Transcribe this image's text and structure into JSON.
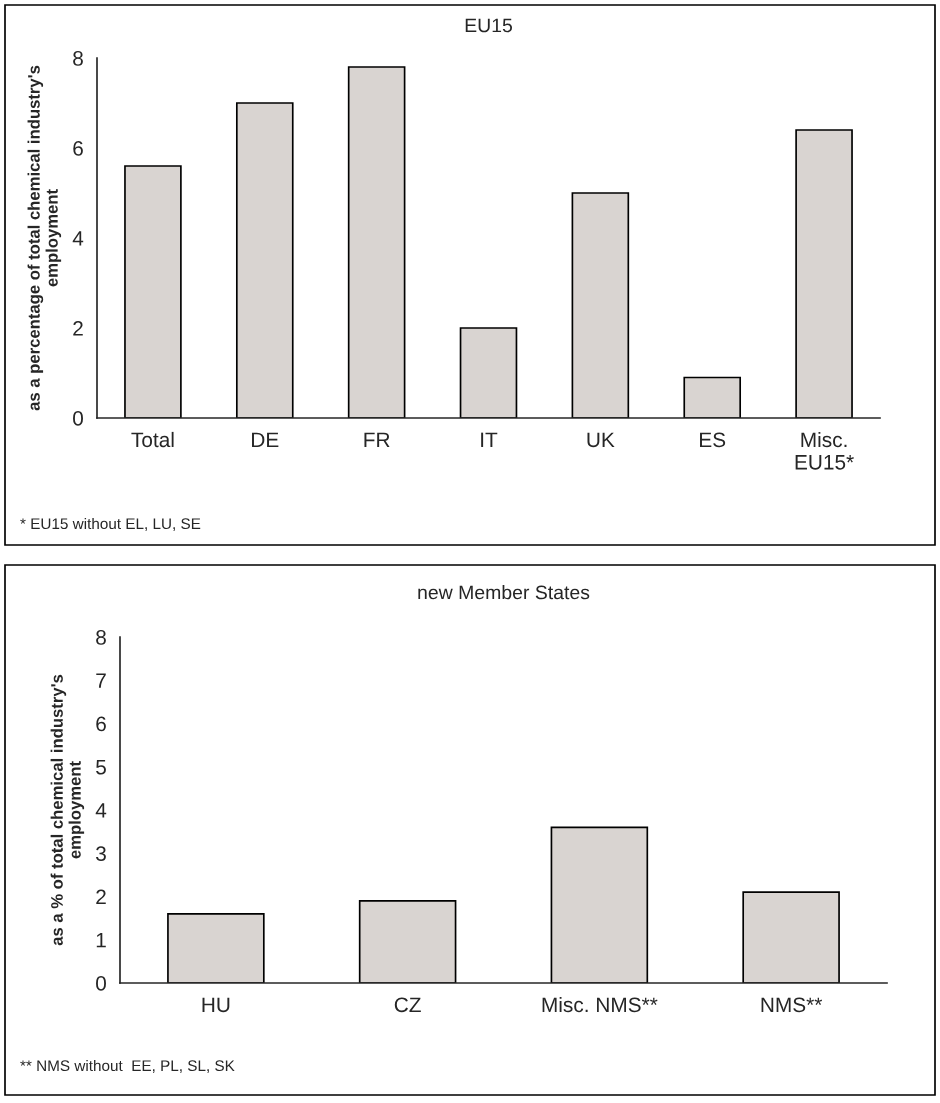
{
  "chart_data": [
    {
      "type": "bar",
      "title": "EU15",
      "ylabel": "as a percentage of total chemical industry's\nemployment",
      "categories": [
        "Total",
        "DE",
        "FR",
        "IT",
        "UK",
        "ES",
        "Misc.\nEU15*"
      ],
      "values": [
        5.6,
        7.0,
        7.8,
        2.0,
        5.0,
        0.9,
        6.4
      ],
      "color": "#d9d4d1",
      "ylim": [
        0,
        8
      ],
      "yticks": [
        0,
        2,
        4,
        6,
        8
      ],
      "grid": false,
      "annotations": [
        "* EU15 without EL, LU, SE"
      ]
    },
    {
      "type": "bar",
      "title": "new Member States",
      "ylabel": "as a % of total chemical industry's\nemployment",
      "categories": [
        "HU",
        "CZ",
        "Misc. NMS**",
        "NMS**"
      ],
      "values": [
        1.6,
        1.9,
        3.6,
        2.1
      ],
      "color": "#d9d4d1",
      "ylim": [
        0,
        8
      ],
      "yticks": [
        0,
        1,
        2,
        3,
        4,
        5,
        6,
        7,
        8
      ],
      "grid": false,
      "annotations": [
        "** NMS without  EE, PL, SL, SK"
      ]
    }
  ]
}
